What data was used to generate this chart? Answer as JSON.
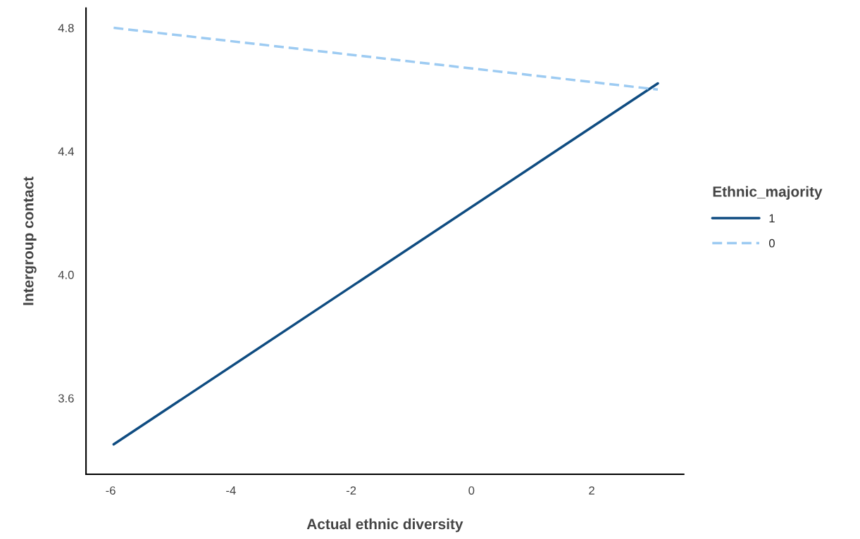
{
  "chart_data": {
    "type": "line",
    "xlabel": "Actual ethnic diversity",
    "ylabel": "Intergroup contact",
    "legend_title": "Ethnic_majority",
    "legend": "right",
    "series": [
      {
        "name": "1",
        "color": "#0f4c81",
        "values": [
          3.45,
          4.62
        ],
        "line_style": "solid"
      },
      {
        "name": "0",
        "color": "#9dcbf2",
        "values": [
          4.8,
          4.6
        ],
        "line_style": "dashed"
      }
    ],
    "x": [
      -5.95,
      3.1
    ],
    "xlim": [
      -6.41,
      3.53
    ],
    "ylim": [
      3.353,
      4.864
    ],
    "xticks": [
      -6,
      -4,
      -2,
      0,
      2
    ],
    "yticks": [
      3.6,
      {
        "value": 4,
        "label": "4.0"
      },
      4.4,
      4.8
    ],
    "grid": false
  }
}
